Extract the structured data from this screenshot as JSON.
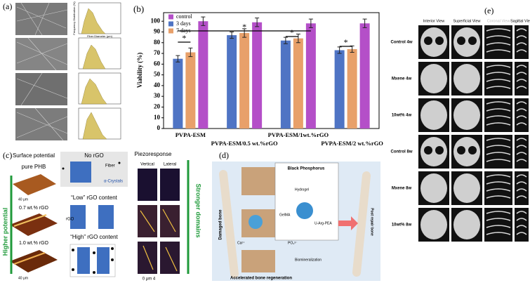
{
  "chart_data": {
    "type": "bar",
    "panel": "(b)",
    "categories": [
      "PVPA-ESM",
      "PVPA-ESM/0.5 wt.%rGO",
      "PVPA-ESM/1wt.%rGO",
      "PVPA-ESM/2 wt.%rGO"
    ],
    "series": [
      {
        "name": "control",
        "color": "#b44fc8",
        "values": [
          100,
          99,
          98,
          98
        ],
        "errors": [
          4,
          4,
          4,
          4
        ]
      },
      {
        "name": "3 days",
        "color": "#4f74c4",
        "values": [
          65,
          87,
          82,
          73
        ],
        "errors": [
          3,
          3,
          3,
          3
        ]
      },
      {
        "name": "7 days",
        "color": "#e8a06a",
        "values": [
          71,
          89,
          84,
          74
        ],
        "errors": [
          4,
          4,
          4,
          3
        ]
      }
    ],
    "draw_order": [
      1,
      2,
      0
    ],
    "y_label": "Viability (%)",
    "ylim": [
      0,
      108
    ],
    "yticks": [
      0,
      10,
      20,
      30,
      40,
      50,
      60,
      70,
      80,
      90,
      100
    ],
    "annotations": [
      "*",
      "*",
      "*",
      "*"
    ],
    "legend": "upper left"
  },
  "panel_a": {
    "label": "(a)",
    "hist_y": "Frequency Distribution (%)",
    "hist_x": "Fiber Diameter (μm)"
  },
  "panel_c": {
    "label": "(c)",
    "surface": "Surface potential",
    "samples": [
      "pure PHB",
      "0.7 wt.% rGO",
      "1.0 wt.% rGO"
    ],
    "scale": "40 μm",
    "no_rgo": "No rGO",
    "fiber": "Fiber",
    "crystals": "α-Crystals",
    "low": "“Low” rGO content",
    "rgo": "rGO",
    "high": "“High” rGO content",
    "piezo": "Piezoresponse",
    "vertical": "Vertical",
    "lateral": "Lateral",
    "stronger": "Stronger domains",
    "higher": "Higher potential",
    "axis": "0  μm  4"
  },
  "panel_d": {
    "label": "(d)",
    "damaged": "Damaged bone",
    "bp": "Black Phosphorus",
    "hydrogel": "Hydrogel",
    "gelma": "GelMA",
    "uarg": "U-Arg-PEA",
    "ca": "Ca²⁺",
    "po": "PO₄³⁻",
    "bio": "Biomineralization",
    "accel": "Accelerated bone regeneration",
    "post": "Post repair bone"
  },
  "panel_e": {
    "label": "(e)",
    "views": [
      "Interior View",
      "Superficial View",
      "Coronal View",
      "Sagittal View"
    ],
    "rows": [
      "Control 4w",
      "Mxene 4w",
      "10wt% 4w",
      "Control 8w",
      "Mxene 8w",
      "10wt% 8w"
    ]
  }
}
